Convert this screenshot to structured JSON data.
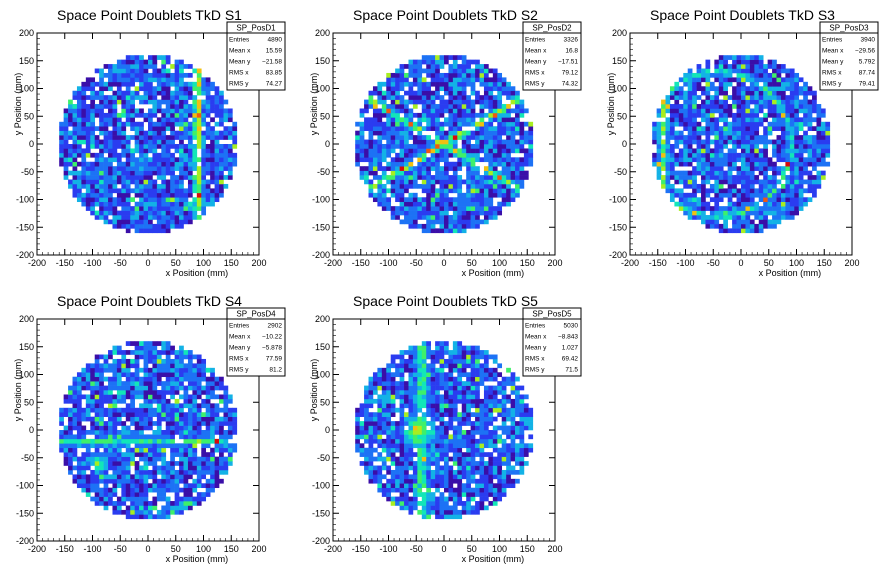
{
  "chart_data": [
    {
      "type": "heatmap",
      "title": "Space Point Doublets TkD S1",
      "xlabel": "x Position (mm)",
      "ylabel": "y Position (mm)",
      "xlim": [
        -200,
        200
      ],
      "ylim": [
        -200,
        200
      ],
      "xticks": [
        -200,
        -150,
        -100,
        -50,
        0,
        50,
        100,
        150,
        200
      ],
      "yticks": [
        -200,
        -150,
        -100,
        -50,
        0,
        50,
        100,
        150,
        200
      ],
      "stats": {
        "name": "SP_PosD1",
        "rows": [
          {
            "label": "Entries",
            "value": "4890"
          },
          {
            "label": "Mean x",
            "value": "15.59"
          },
          {
            "label": "Mean y",
            "value": "−21.58"
          },
          {
            "label": "RMS x",
            "value": "83.85"
          },
          {
            "label": "RMS y",
            "value": "74.27"
          }
        ]
      },
      "distribution": {
        "radius_mm": 162,
        "bin_mm": 8,
        "features": [
          {
            "kind": "band_x",
            "x": 90,
            "width": 12,
            "level": 0.95
          }
        ]
      }
    },
    {
      "type": "heatmap",
      "title": "Space Point Doublets TkD S2",
      "xlabel": "x Position (mm)",
      "ylabel": "y Position (mm)",
      "xlim": [
        -200,
        200
      ],
      "ylim": [
        -200,
        200
      ],
      "xticks": [
        -200,
        -150,
        -100,
        -50,
        0,
        50,
        100,
        150,
        200
      ],
      "yticks": [
        -200,
        -150,
        -100,
        -50,
        0,
        50,
        100,
        150,
        200
      ],
      "stats": {
        "name": "SP_PosD2",
        "rows": [
          {
            "label": "Entries",
            "value": "3326"
          },
          {
            "label": "Mean x",
            "value": "16.8"
          },
          {
            "label": "Mean y",
            "value": "−17.51"
          },
          {
            "label": "RMS x",
            "value": "79.12"
          },
          {
            "label": "RMS y",
            "value": "74.32"
          }
        ]
      },
      "distribution": {
        "radius_mm": 162,
        "bin_mm": 8,
        "features": [
          {
            "kind": "diag",
            "slope": 0.6,
            "level": 0.85
          },
          {
            "kind": "diag",
            "slope": -0.6,
            "level": 0.85
          }
        ]
      }
    },
    {
      "type": "heatmap",
      "title": "Space Point Doublets TkD S3",
      "xlabel": "x Position (mm)",
      "ylabel": "y Position (mm)",
      "xlim": [
        -200,
        200
      ],
      "ylim": [
        -200,
        200
      ],
      "xticks": [
        -200,
        -150,
        -100,
        -50,
        0,
        50,
        100,
        150,
        200
      ],
      "yticks": [
        -200,
        -150,
        -100,
        -50,
        0,
        50,
        100,
        150,
        200
      ],
      "stats": {
        "name": "SP_PosD3",
        "rows": [
          {
            "label": "Entries",
            "value": "3940"
          },
          {
            "label": "Mean x",
            "value": "−29.56"
          },
          {
            "label": "Mean y",
            "value": "5.792"
          },
          {
            "label": "RMS x",
            "value": "87.74"
          },
          {
            "label": "RMS y",
            "value": "79.41"
          }
        ]
      },
      "distribution": {
        "radius_mm": 162,
        "bin_mm": 8,
        "features": [
          {
            "kind": "band_x",
            "x": -140,
            "width": 14,
            "level": 0.75
          },
          {
            "kind": "arc",
            "cx": -40,
            "cy": 0,
            "r": 130,
            "level": 0.6
          }
        ]
      }
    },
    {
      "type": "heatmap",
      "title": "Space Point Doublets TkD S4",
      "xlabel": "x Position (mm)",
      "ylabel": "y Position (mm)",
      "xlim": [
        -200,
        200
      ],
      "ylim": [
        -200,
        200
      ],
      "xticks": [
        -200,
        -150,
        -100,
        -50,
        0,
        50,
        100,
        150,
        200
      ],
      "yticks": [
        -200,
        -150,
        -100,
        -50,
        0,
        50,
        100,
        150,
        200
      ],
      "stats": {
        "name": "SP_PosD4",
        "rows": [
          {
            "label": "Entries",
            "value": "2902"
          },
          {
            "label": "Mean x",
            "value": "−10.22"
          },
          {
            "label": "Mean y",
            "value": "−5.878"
          },
          {
            "label": "RMS x",
            "value": "77.59"
          },
          {
            "label": "RMS y",
            "value": "81.2"
          }
        ]
      },
      "distribution": {
        "radius_mm": 162,
        "bin_mm": 8,
        "features": [
          {
            "kind": "band_y",
            "y": -20,
            "width": 14,
            "level": 0.6
          },
          {
            "kind": "blob",
            "cx": -90,
            "cy": -60,
            "r": 30,
            "level": 0.7
          }
        ]
      }
    },
    {
      "type": "heatmap",
      "title": "Space Point Doublets TkD S5",
      "xlabel": "x Position (mm)",
      "ylabel": "y Position (mm)",
      "xlim": [
        -200,
        200
      ],
      "ylim": [
        -200,
        200
      ],
      "xticks": [
        -200,
        -150,
        -100,
        -50,
        0,
        50,
        100,
        150,
        200
      ],
      "yticks": [
        -200,
        -150,
        -100,
        -50,
        0,
        50,
        100,
        150,
        200
      ],
      "stats": {
        "name": "SP_PosD5",
        "rows": [
          {
            "label": "Entries",
            "value": "5030"
          },
          {
            "label": "Mean x",
            "value": "−8.843"
          },
          {
            "label": "Mean y",
            "value": "1.027"
          },
          {
            "label": "RMS x",
            "value": "69.42"
          },
          {
            "label": "RMS y",
            "value": "71.5"
          }
        ]
      },
      "distribution": {
        "radius_mm": 162,
        "bin_mm": 8,
        "features": [
          {
            "kind": "blob",
            "cx": -45,
            "cy": 0,
            "r": 45,
            "level": 0.9
          },
          {
            "kind": "band_x",
            "x": -40,
            "width": 16,
            "level": 0.7
          }
        ]
      }
    }
  ],
  "palette": [
    "#ffffff",
    "#3a0ea8",
    "#2a3cf0",
    "#1d72f5",
    "#13b2e6",
    "#12e6b8",
    "#3ef06a",
    "#a8ee20",
    "#f0c010",
    "#f05a10",
    "#d80a0a"
  ]
}
